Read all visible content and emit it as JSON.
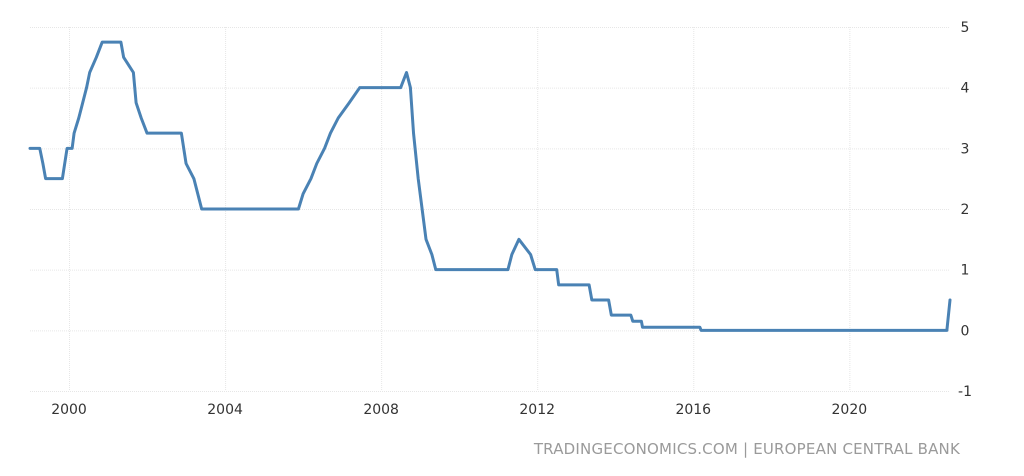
{
  "source_text": "TRADINGECONOMICS.COM | EUROPEAN CENTRAL BANK",
  "colors": {
    "line": "#4a82b4",
    "grid": "#e6e6e6",
    "text": "#333333",
    "source": "#9a9a9a"
  },
  "chart_data": {
    "type": "line",
    "title": "",
    "xlabel": "",
    "ylabel": "",
    "xlim": [
      1999.0,
      2022.58
    ],
    "ylim": [
      -1,
      5
    ],
    "x_ticks": [
      2000,
      2004,
      2008,
      2012,
      2016,
      2020
    ],
    "y_ticks": [
      5,
      4,
      3,
      2,
      1,
      0,
      -1
    ],
    "y_axis_position": "right",
    "grid": true,
    "legend": "none",
    "series": [
      {
        "points": [
          [
            1999.0,
            3.0
          ],
          [
            1999.25,
            3.0
          ],
          [
            1999.33,
            2.75
          ],
          [
            1999.4,
            2.5
          ],
          [
            1999.83,
            2.5
          ],
          [
            1999.95,
            3.0
          ],
          [
            2000.08,
            3.0
          ],
          [
            2000.13,
            3.25
          ],
          [
            2000.25,
            3.5
          ],
          [
            2000.35,
            3.75
          ],
          [
            2000.45,
            4.0
          ],
          [
            2000.53,
            4.25
          ],
          [
            2000.7,
            4.5
          ],
          [
            2000.85,
            4.75
          ],
          [
            2001.33,
            4.75
          ],
          [
            2001.4,
            4.5
          ],
          [
            2001.65,
            4.25
          ],
          [
            2001.72,
            3.75
          ],
          [
            2001.85,
            3.5
          ],
          [
            2002.0,
            3.25
          ],
          [
            2002.88,
            3.25
          ],
          [
            2003.0,
            2.75
          ],
          [
            2003.2,
            2.5
          ],
          [
            2003.4,
            2.0
          ],
          [
            2005.88,
            2.0
          ],
          [
            2006.0,
            2.25
          ],
          [
            2006.2,
            2.5
          ],
          [
            2006.35,
            2.75
          ],
          [
            2006.55,
            3.0
          ],
          [
            2006.7,
            3.25
          ],
          [
            2006.9,
            3.5
          ],
          [
            2007.18,
            3.75
          ],
          [
            2007.45,
            4.0
          ],
          [
            2008.5,
            4.0
          ],
          [
            2008.65,
            4.25
          ],
          [
            2008.75,
            4.0
          ],
          [
            2008.83,
            3.25
          ],
          [
            2008.95,
            2.5
          ],
          [
            2009.05,
            2.0
          ],
          [
            2009.15,
            1.5
          ],
          [
            2009.3,
            1.25
          ],
          [
            2009.4,
            1.0
          ],
          [
            2011.25,
            1.0
          ],
          [
            2011.35,
            1.25
          ],
          [
            2011.53,
            1.5
          ],
          [
            2011.83,
            1.25
          ],
          [
            2011.95,
            1.0
          ],
          [
            2012.5,
            1.0
          ],
          [
            2012.55,
            0.75
          ],
          [
            2013.33,
            0.75
          ],
          [
            2013.4,
            0.5
          ],
          [
            2013.83,
            0.5
          ],
          [
            2013.9,
            0.25
          ],
          [
            2014.4,
            0.25
          ],
          [
            2014.45,
            0.15
          ],
          [
            2014.67,
            0.15
          ],
          [
            2014.7,
            0.05
          ],
          [
            2016.17,
            0.05
          ],
          [
            2016.2,
            0.0
          ],
          [
            2022.5,
            0.0
          ],
          [
            2022.58,
            0.5
          ]
        ]
      }
    ]
  }
}
